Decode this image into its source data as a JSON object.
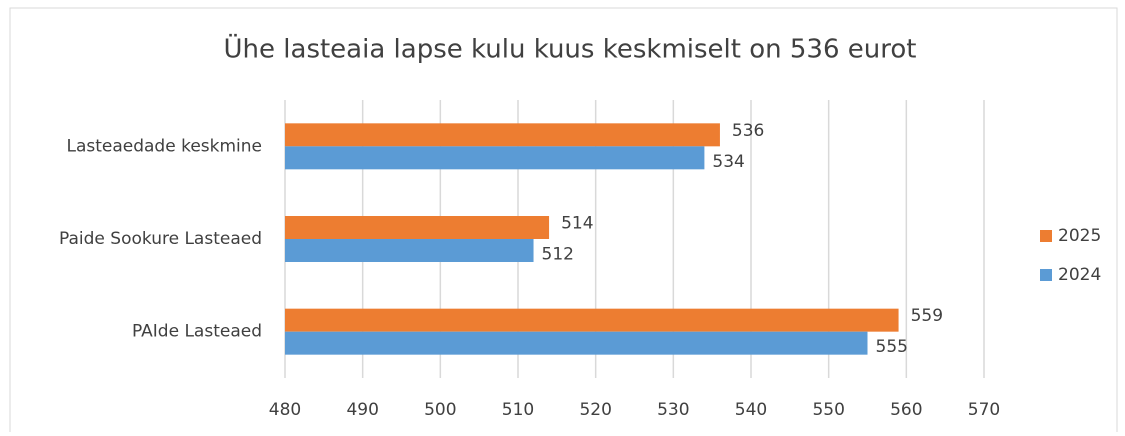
{
  "chart_data": {
    "type": "bar",
    "orientation": "horizontal",
    "title": "Ühe lasteaia lapse kulu kuus keskmiselt on 536 eurot",
    "categories": [
      "Lasteaedade keskmine",
      "Paide Sookure Lasteaed",
      "PAIde Lasteaed"
    ],
    "series": [
      {
        "name": "2025",
        "color": "#ed7d31",
        "values": [
          536,
          514,
          559
        ]
      },
      {
        "name": "2024",
        "color": "#5b9bd5",
        "values": [
          534,
          512,
          555
        ]
      }
    ],
    "xlim": [
      480,
      570
    ],
    "xticks": [
      480,
      490,
      500,
      510,
      520,
      530,
      540,
      550,
      560,
      570
    ],
    "grid": true,
    "legend": "right"
  }
}
